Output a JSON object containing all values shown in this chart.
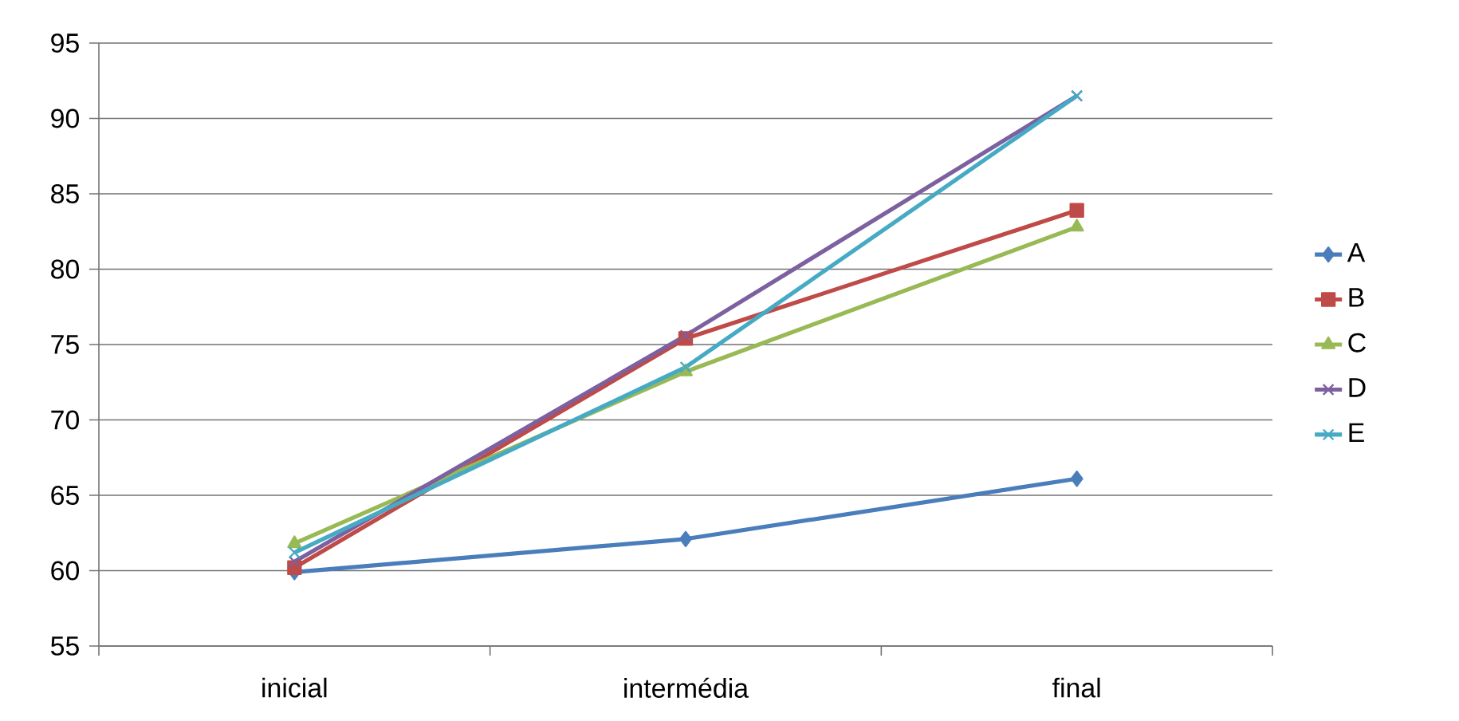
{
  "chart_data": {
    "type": "line",
    "categories": [
      "inicial",
      "intermédia",
      "final"
    ],
    "series": [
      {
        "name": "A",
        "color": "#4a7ebb",
        "marker": "diamond",
        "values": [
          59.9,
          62.1,
          66.1
        ]
      },
      {
        "name": "B",
        "color": "#be4b48",
        "marker": "square",
        "values": [
          60.2,
          75.4,
          83.9
        ]
      },
      {
        "name": "C",
        "color": "#98b954",
        "marker": "triangle",
        "values": [
          61.8,
          73.2,
          82.8
        ]
      },
      {
        "name": "D",
        "color": "#7d60a0",
        "marker": "cross",
        "values": [
          60.6,
          75.6,
          91.5
        ]
      },
      {
        "name": "E",
        "color": "#46aac5",
        "marker": "cross",
        "values": [
          61.2,
          73.5,
          91.5
        ]
      }
    ],
    "ylim": [
      55,
      95
    ],
    "yticks": [
      55,
      60,
      65,
      70,
      75,
      80,
      85,
      90,
      95
    ],
    "grid": "y",
    "legend": "right"
  }
}
